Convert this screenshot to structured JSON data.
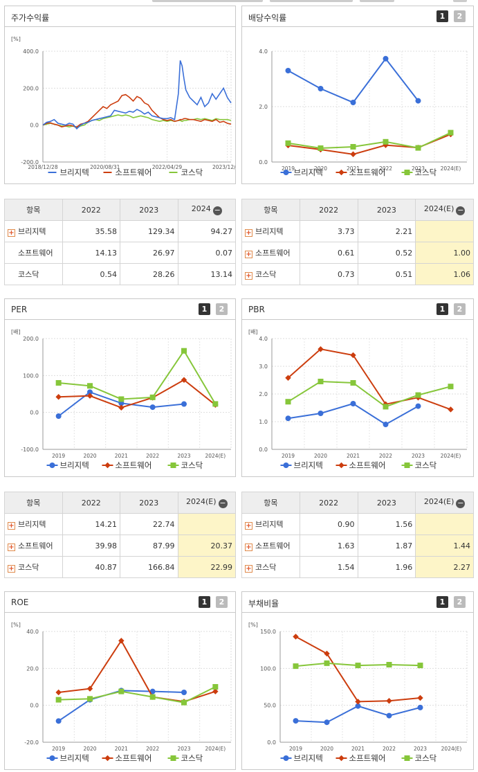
{
  "legend_series": [
    "브리지텍",
    "소프트웨어",
    "코스닥"
  ],
  "colors": {
    "s0": "#3a6fd8",
    "s1": "#cc3d0e",
    "s2": "#86c63a"
  },
  "buttons": {
    "b1": "1",
    "b2": "2"
  },
  "panels": {
    "stock": {
      "title": "주가수익률"
    },
    "dividend": {
      "title": "배당수익률"
    },
    "per": {
      "title": "PER"
    },
    "pbr": {
      "title": "PBR"
    },
    "roe": {
      "title": "ROE"
    },
    "debt": {
      "title": "부채비율"
    }
  },
  "tables": {
    "stock": {
      "header": [
        "항목",
        "2022",
        "2023",
        "2024"
      ],
      "rows": [
        {
          "name": "브리지텍",
          "plus": true,
          "v": [
            "35.58",
            "129.34",
            "94.27"
          ]
        },
        {
          "name": "소프트웨어",
          "plus": false,
          "v": [
            "14.13",
            "26.97",
            "0.07"
          ]
        },
        {
          "name": "코스닥",
          "plus": false,
          "v": [
            "0.54",
            "28.26",
            "13.14"
          ]
        }
      ]
    },
    "dividend": {
      "header": [
        "항목",
        "2022",
        "2023",
        "2024(E)"
      ],
      "rows": [
        {
          "name": "브리지텍",
          "plus": true,
          "v": [
            "3.73",
            "2.21",
            ""
          ]
        },
        {
          "name": "소프트웨어",
          "plus": true,
          "v": [
            "0.61",
            "0.52",
            "1.00"
          ]
        },
        {
          "name": "코스닥",
          "plus": true,
          "v": [
            "0.73",
            "0.51",
            "1.06"
          ]
        }
      ]
    },
    "per": {
      "header": [
        "항목",
        "2022",
        "2023",
        "2024(E)"
      ],
      "rows": [
        {
          "name": "브리지텍",
          "plus": true,
          "v": [
            "14.21",
            "22.74",
            ""
          ]
        },
        {
          "name": "소프트웨어",
          "plus": true,
          "v": [
            "39.98",
            "87.99",
            "20.37"
          ]
        },
        {
          "name": "코스닥",
          "plus": true,
          "v": [
            "40.87",
            "166.84",
            "22.99"
          ]
        }
      ]
    },
    "pbr": {
      "header": [
        "항목",
        "2022",
        "2023",
        "2024(E)"
      ],
      "rows": [
        {
          "name": "브리지텍",
          "plus": true,
          "v": [
            "0.90",
            "1.56",
            ""
          ]
        },
        {
          "name": "소프트웨어",
          "plus": true,
          "v": [
            "1.63",
            "1.87",
            "1.44"
          ]
        },
        {
          "name": "코스닥",
          "plus": true,
          "v": [
            "1.54",
            "1.96",
            "2.27"
          ]
        }
      ]
    }
  },
  "chart_data": [
    {
      "id": "stock",
      "type": "line",
      "unit": "[%]",
      "ylim": [
        -200,
        400
      ],
      "yticks": [
        "400.0",
        "200.0",
        "0.0",
        "-200.0"
      ],
      "xlabels": [
        "2018/12/28",
        "2020/08/31",
        "2022/04/29",
        "2023/12/28"
      ],
      "x": [
        0,
        0.02,
        0.04,
        0.06,
        0.08,
        0.1,
        0.12,
        0.14,
        0.16,
        0.18,
        0.2,
        0.22,
        0.24,
        0.26,
        0.28,
        0.3,
        0.32,
        0.34,
        0.36,
        0.38,
        0.4,
        0.42,
        0.44,
        0.46,
        0.48,
        0.5,
        0.52,
        0.54,
        0.56,
        0.58,
        0.6,
        0.62,
        0.64,
        0.66,
        0.68,
        0.7,
        0.72,
        0.73,
        0.74,
        0.75,
        0.76,
        0.78,
        0.8,
        0.82,
        0.84,
        0.86,
        0.88,
        0.9,
        0.92,
        0.94,
        0.96,
        0.98,
        1.0
      ],
      "series": [
        {
          "name": "브리지텍",
          "values": [
            0,
            15,
            20,
            30,
            10,
            5,
            0,
            10,
            5,
            -20,
            0,
            10,
            15,
            25,
            30,
            35,
            40,
            45,
            50,
            80,
            75,
            70,
            65,
            75,
            70,
            85,
            75,
            60,
            70,
            50,
            45,
            40,
            35,
            35,
            40,
            30,
            170,
            350,
            320,
            250,
            190,
            150,
            130,
            110,
            150,
            100,
            120,
            170,
            140,
            170,
            200,
            150,
            120
          ]
        },
        {
          "name": "소프트웨어",
          "values": [
            0,
            10,
            12,
            5,
            0,
            -10,
            -5,
            0,
            -5,
            -10,
            5,
            10,
            20,
            40,
            60,
            80,
            100,
            90,
            110,
            120,
            130,
            160,
            165,
            150,
            130,
            155,
            145,
            120,
            110,
            80,
            60,
            40,
            30,
            25,
            30,
            20,
            25,
            30,
            30,
            35,
            35,
            30,
            30,
            25,
            20,
            30,
            25,
            20,
            30,
            15,
            20,
            10,
            5
          ]
        },
        {
          "name": "코스닥",
          "values": [
            0,
            5,
            10,
            5,
            0,
            -5,
            -5,
            -10,
            -5,
            -15,
            -5,
            0,
            15,
            25,
            30,
            25,
            35,
            40,
            45,
            50,
            55,
            50,
            55,
            50,
            40,
            45,
            50,
            45,
            40,
            30,
            25,
            20,
            25,
            20,
            25,
            20,
            25,
            25,
            20,
            25,
            25,
            30,
            30,
            35,
            30,
            35,
            30,
            25,
            35,
            30,
            30,
            30,
            25
          ]
        }
      ]
    },
    {
      "id": "dividend",
      "type": "line",
      "unit": "",
      "ylim": [
        0,
        4
      ],
      "yticks": [
        "4.0",
        "2.0",
        "0.0"
      ],
      "categories": [
        "2019",
        "2020",
        "2021",
        "2022",
        "2023",
        "2024(E)"
      ],
      "series": [
        {
          "name": "브리지텍",
          "values": [
            3.3,
            2.65,
            2.15,
            3.73,
            2.21,
            null
          ]
        },
        {
          "name": "소프트웨어",
          "values": [
            0.6,
            0.45,
            0.28,
            0.61,
            0.52,
            1.0
          ]
        },
        {
          "name": "코스닥",
          "values": [
            0.68,
            0.5,
            0.55,
            0.73,
            0.51,
            1.06
          ]
        }
      ]
    },
    {
      "id": "per",
      "type": "line",
      "unit": "[배]",
      "ylim": [
        -100,
        200
      ],
      "yticks": [
        "200.0",
        "100.0",
        "0.0",
        "-100.0"
      ],
      "categories": [
        "2019",
        "2020",
        "2021",
        "2022",
        "2023",
        "2024(E)"
      ],
      "series": [
        {
          "name": "브리지텍",
          "values": [
            -10,
            55,
            25,
            14.21,
            22.74,
            null
          ]
        },
        {
          "name": "소프트웨어",
          "values": [
            42,
            45,
            13,
            39.98,
            87.99,
            20.37
          ]
        },
        {
          "name": "코스닥",
          "values": [
            80,
            72,
            36,
            40.87,
            166.84,
            22.99
          ]
        }
      ]
    },
    {
      "id": "pbr",
      "type": "line",
      "unit": "[배]",
      "ylim": [
        0,
        4
      ],
      "yticks": [
        "4.0",
        "3.0",
        "2.0",
        "1.0",
        "0.0"
      ],
      "categories": [
        "2019",
        "2020",
        "2021",
        "2022",
        "2023",
        "2024(E)"
      ],
      "series": [
        {
          "name": "브리지텍",
          "values": [
            1.12,
            1.3,
            1.65,
            0.9,
            1.56,
            null
          ]
        },
        {
          "name": "소프트웨어",
          "values": [
            2.58,
            3.62,
            3.4,
            1.63,
            1.87,
            1.44
          ]
        },
        {
          "name": "코스닥",
          "values": [
            1.72,
            2.45,
            2.4,
            1.54,
            1.96,
            2.27
          ]
        }
      ]
    },
    {
      "id": "roe",
      "type": "line",
      "unit": "[%]",
      "ylim": [
        -20,
        40
      ],
      "yticks": [
        "40.0",
        "20.0",
        "0.0",
        "-20.0"
      ],
      "categories": [
        "2019",
        "2020",
        "2021",
        "2022",
        "2023",
        "2024(E)"
      ],
      "series": [
        {
          "name": "브리지텍",
          "values": [
            -8.5,
            3,
            8,
            7.5,
            7,
            null
          ]
        },
        {
          "name": "소프트웨어",
          "values": [
            7,
            9,
            35,
            4.5,
            2,
            7.5
          ]
        },
        {
          "name": "코스닥",
          "values": [
            3,
            3.5,
            7.5,
            4.5,
            1.5,
            10
          ]
        }
      ]
    },
    {
      "id": "debt",
      "type": "line",
      "unit": "[%]",
      "ylim": [
        0,
        150
      ],
      "yticks": [
        "150.0",
        "100.0",
        "50.0",
        "0.0"
      ],
      "categories": [
        "2019",
        "2020",
        "2021",
        "2022",
        "2023",
        "2024(E)"
      ],
      "series": [
        {
          "name": "브리지텍",
          "values": [
            29,
            27,
            49,
            36,
            47,
            null
          ]
        },
        {
          "name": "소프트웨어",
          "values": [
            143,
            120,
            55,
            56,
            60,
            null
          ]
        },
        {
          "name": "코스닥",
          "values": [
            103,
            107,
            104,
            105,
            104,
            null
          ]
        }
      ]
    }
  ]
}
